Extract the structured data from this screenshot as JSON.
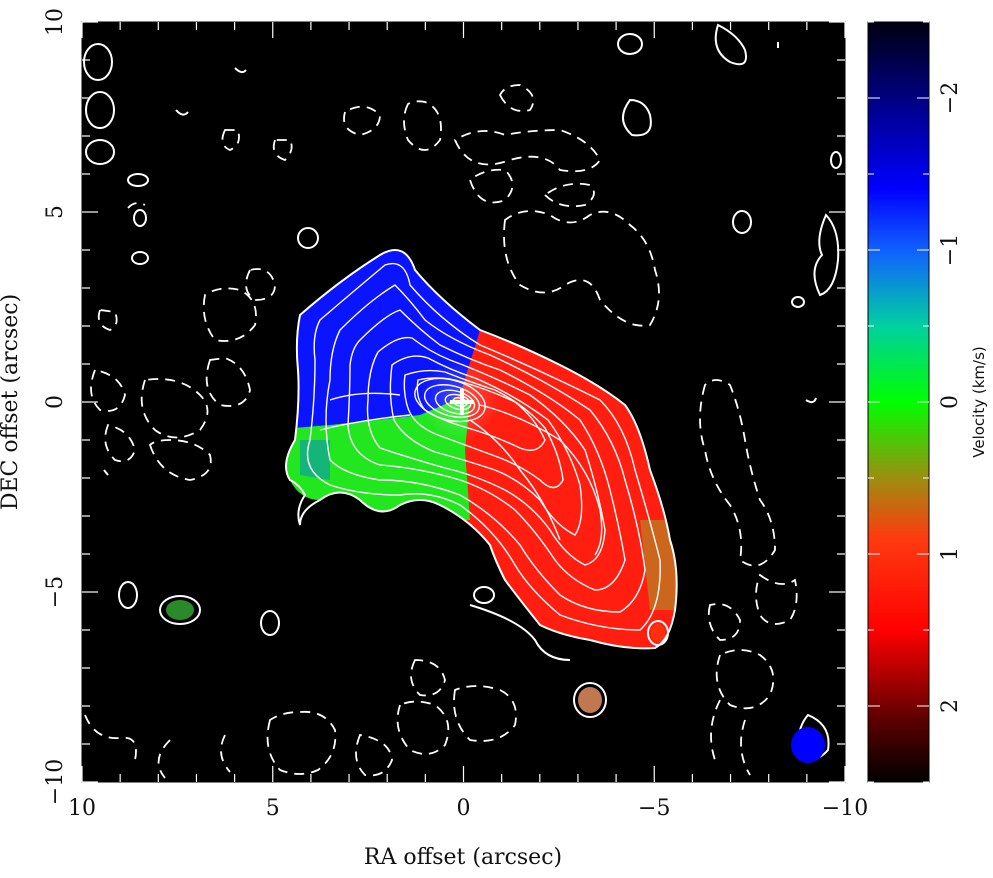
{
  "chart_data": {
    "type": "heatmap",
    "title": "",
    "xlabel": "RA offset (arcsec)",
    "ylabel": "DEC offset (arcsec)",
    "xlim": [
      10,
      -10
    ],
    "ylim": [
      -10,
      10
    ],
    "x_ticks": [
      10,
      5,
      0,
      -5,
      -10
    ],
    "x_tick_labels": [
      "10",
      "5",
      "0",
      "−5",
      "−10"
    ],
    "y_ticks": [
      -10,
      -5,
      0,
      5,
      10
    ],
    "y_tick_labels": [
      "−10",
      "−5",
      "0",
      "5",
      "10"
    ],
    "colorbar": {
      "label": "Velocity (km/s)",
      "range": [
        2.5,
        -2.5
      ],
      "ticks": [
        2,
        1,
        0,
        -1,
        -2
      ],
      "tick_labels": [
        "2",
        "1",
        "0",
        "−1",
        "−2"
      ],
      "colormap": [
        "#000000",
        "#ff1a00",
        "#00ff00",
        "#0000ff",
        "#000010"
      ]
    },
    "velocity_field": {
      "approaching_side": "north-east (blue, about −1.5 km/s)",
      "receding_side": "south-west (red, about +1.5 km/s)",
      "center_marker": [
        0,
        0
      ]
    },
    "contours": {
      "positive": "solid white",
      "negative": "dashed white"
    },
    "beam": {
      "x": -9.3,
      "y": -9.0,
      "major_arcsec": 0.9,
      "minor_arcsec": 0.8,
      "color": "#0000ff"
    },
    "colors": {
      "background": "#000000",
      "contour": "#ffffff",
      "blue": "#0a14ff",
      "green": "#22e61e",
      "red": "#ff1e10"
    }
  }
}
